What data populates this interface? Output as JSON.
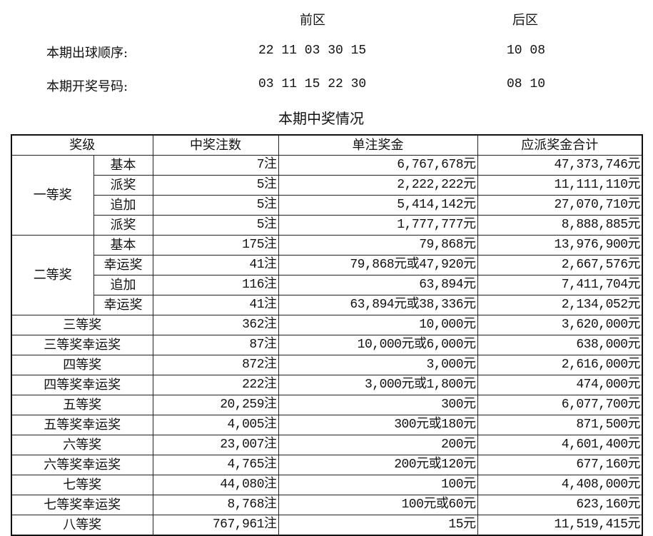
{
  "header": {
    "front_label": "前区",
    "back_label": "后区",
    "draw_order_label": "本期出球顺序:",
    "draw_order_front": "22 11 03 30 15",
    "draw_order_back": "10 08",
    "winning_label": "本期开奖号码:",
    "winning_front": "03 11 15 22 30",
    "winning_back": "08 10",
    "section_title": "本期中奖情况"
  },
  "table": {
    "columns": [
      "奖级",
      "中奖注数",
      "单注奖金",
      "应派奖金合计"
    ],
    "groups": [
      {
        "label": "一等奖",
        "rows": [
          {
            "sub": "基本",
            "count": "7注",
            "unit": "6,767,678元",
            "total": "47,373,746元"
          },
          {
            "sub": "派奖",
            "count": "5注",
            "unit": "2,222,222元",
            "total": "11,111,110元"
          },
          {
            "sub": "追加",
            "count": "5注",
            "unit": "5,414,142元",
            "total": "27,070,710元"
          },
          {
            "sub": "派奖",
            "count": "5注",
            "unit": "1,777,777元",
            "total": "8,888,885元"
          }
        ]
      },
      {
        "label": "二等奖",
        "rows": [
          {
            "sub": "基本",
            "count": "175注",
            "unit": "79,868元",
            "total": "13,976,900元"
          },
          {
            "sub": "幸运奖",
            "count": "41注",
            "unit": "79,868元或47,920元",
            "total": "2,667,576元"
          },
          {
            "sub": "追加",
            "count": "116注",
            "unit": "63,894元",
            "total": "7,411,704元"
          },
          {
            "sub": "幸运奖",
            "count": "41注",
            "unit": "63,894元或38,336元",
            "total": "2,134,052元"
          }
        ]
      }
    ],
    "rows": [
      {
        "level": "三等奖",
        "count": "362注",
        "unit": "10,000元",
        "total": "3,620,000元"
      },
      {
        "level": "三等奖幸运奖",
        "count": "87注",
        "unit": "10,000元或6,000元",
        "total": "638,000元"
      },
      {
        "level": "四等奖",
        "count": "872注",
        "unit": "3,000元",
        "total": "2,616,000元"
      },
      {
        "level": "四等奖幸运奖",
        "count": "222注",
        "unit": "3,000元或1,800元",
        "total": "474,000元"
      },
      {
        "level": "五等奖",
        "count": "20,259注",
        "unit": "300元",
        "total": "6,077,700元"
      },
      {
        "level": "五等奖幸运奖",
        "count": "4,005注",
        "unit": "300元或180元",
        "total": "871,500元"
      },
      {
        "level": "六等奖",
        "count": "23,007注",
        "unit": "200元",
        "total": "4,601,400元"
      },
      {
        "level": "六等奖幸运奖",
        "count": "4,765注",
        "unit": "200元或120元",
        "total": "677,160元"
      },
      {
        "level": "七等奖",
        "count": "44,080注",
        "unit": "100元",
        "total": "4,408,000元"
      },
      {
        "level": "七等奖幸运奖",
        "count": "8,768注",
        "unit": "100元或60元",
        "total": "623,160元"
      },
      {
        "level": "八等奖",
        "count": "767,961注",
        "unit": "15元",
        "total": "11,519,415元"
      }
    ]
  }
}
